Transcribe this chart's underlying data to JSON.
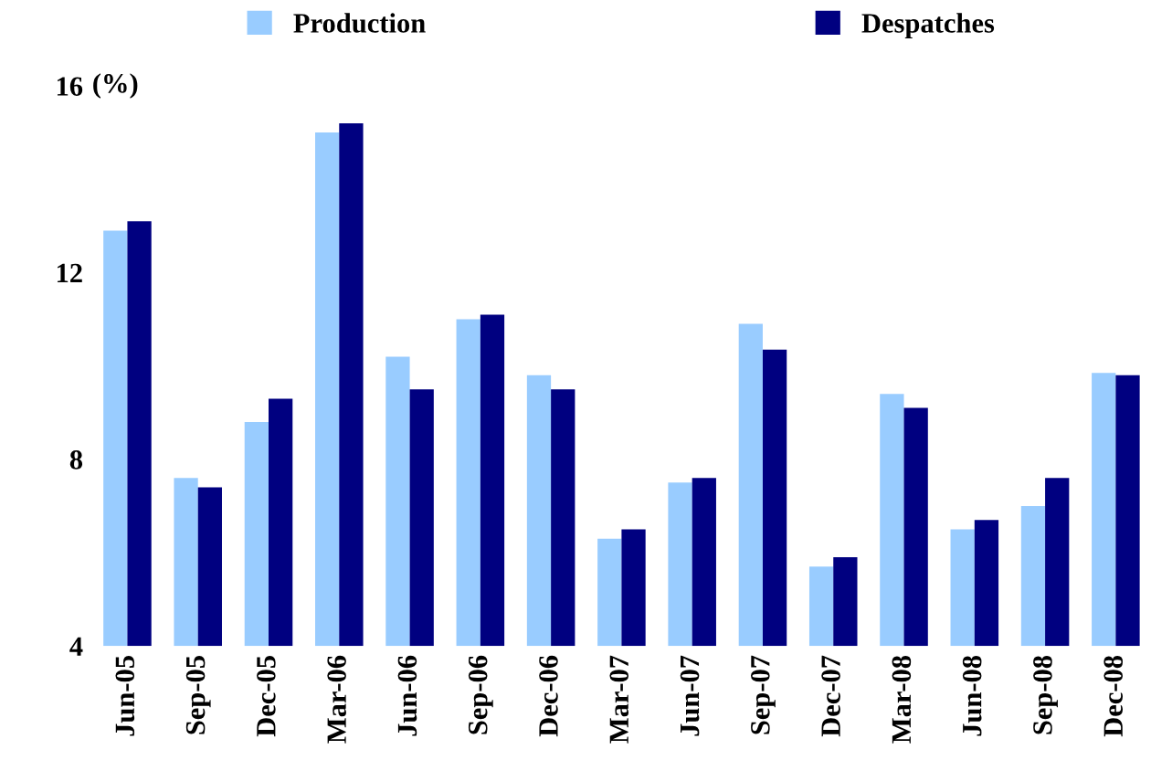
{
  "chart_data": {
    "type": "bar",
    "ylabel": "(%)",
    "categories": [
      "Jun-05",
      "Sep-05",
      "Dec-05",
      "Mar-06",
      "Jun-06",
      "Sep-06",
      "Dec-06",
      "Mar-07",
      "Jun-07",
      "Sep-07",
      "Dec-07",
      "Mar-08",
      "Jun-08",
      "Sep-08",
      "Dec-08"
    ],
    "series": [
      {
        "name": "Production",
        "color": "#99ccff",
        "values": [
          12.9,
          7.6,
          8.8,
          15.0,
          10.2,
          11.0,
          9.8,
          6.3,
          7.5,
          10.9,
          5.7,
          9.4,
          6.5,
          7.0,
          9.85
        ]
      },
      {
        "name": "Despatches",
        "color": "#000080",
        "values": [
          13.1,
          7.4,
          9.3,
          15.2,
          9.5,
          11.1,
          9.5,
          6.5,
          7.6,
          10.35,
          5.9,
          9.1,
          6.7,
          7.6,
          9.8
        ]
      }
    ],
    "ylim": [
      4,
      16
    ],
    "yticks": [
      4,
      8,
      12,
      16
    ],
    "grid": false,
    "legend": "top"
  }
}
